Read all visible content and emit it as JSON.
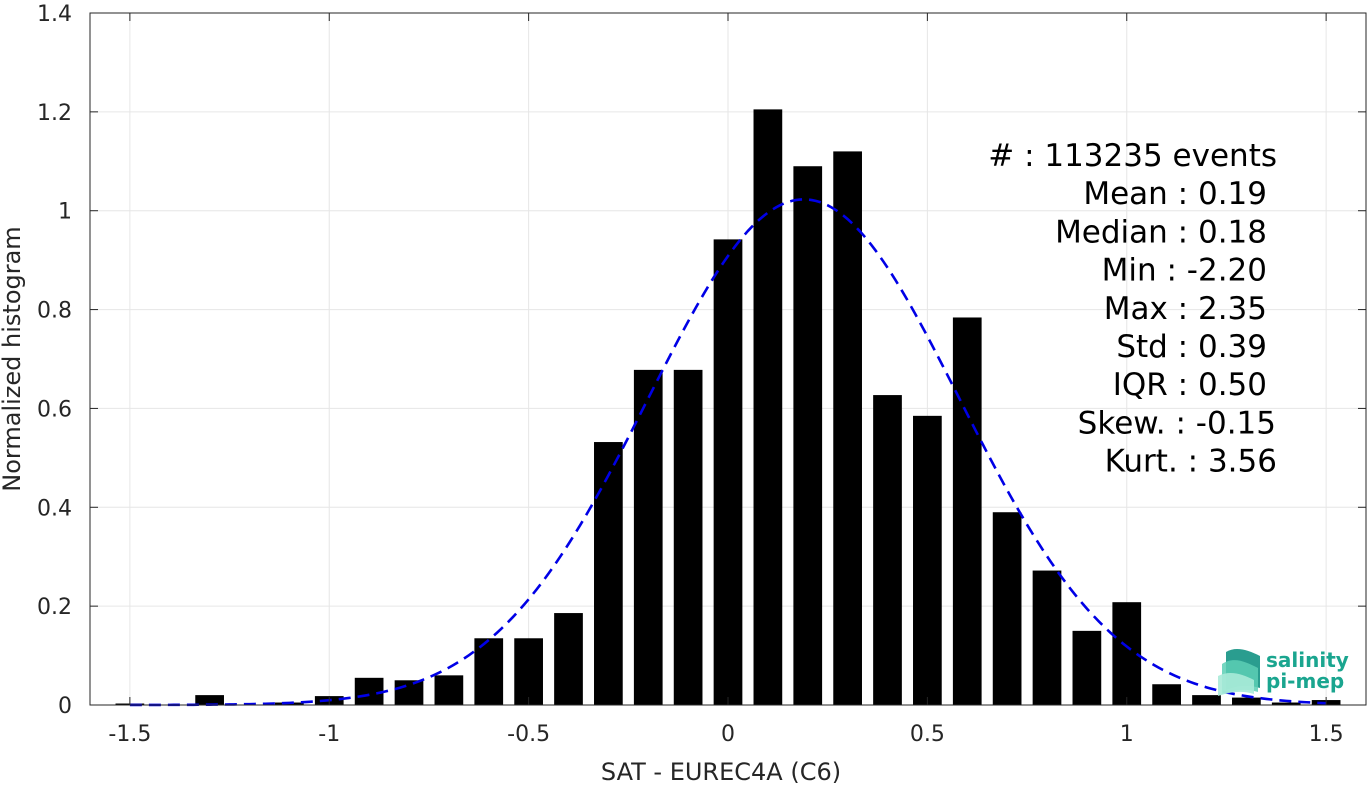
{
  "chart_data": {
    "type": "bar",
    "xlabel": "SAT - EUREC4A (C6)",
    "ylabel": "Normalized histogram",
    "xlim": [
      -1.6,
      1.6
    ],
    "ylim": [
      0,
      1.4
    ],
    "xticks": [
      -1.5,
      -1,
      -0.5,
      0,
      0.5,
      1,
      1.5
    ],
    "xtick_labels": [
      "-1.5",
      "-1",
      "-0.5",
      "0",
      "0.5",
      "1",
      "1.5"
    ],
    "yticks": [
      0,
      0.2,
      0.4,
      0.6,
      0.8,
      1,
      1.2,
      1.4
    ],
    "ytick_labels": [
      "0",
      "0.2",
      "0.4",
      "0.6",
      "0.8",
      "1",
      "1.2",
      "1.4"
    ],
    "grid": true,
    "bar_color": "#000000",
    "fit_color": "#0000e6",
    "bars": {
      "x": [
        -1.5,
        -1.4,
        -1.3,
        -1.2,
        -1.1,
        -1.0,
        -0.9,
        -0.8,
        -0.7,
        -0.6,
        -0.5,
        -0.4,
        -0.3,
        -0.2,
        -0.1,
        0.0,
        0.1,
        0.2,
        0.3,
        0.4,
        0.5,
        0.6,
        0.7,
        0.8,
        0.9,
        1.0,
        1.1,
        1.2,
        1.3,
        1.4,
        1.5
      ],
      "values": [
        0.003,
        0.0,
        0.02,
        0.0,
        0.005,
        0.018,
        0.055,
        0.05,
        0.06,
        0.135,
        0.135,
        0.186,
        0.532,
        0.678,
        0.678,
        0.942,
        1.205,
        1.09,
        1.12,
        0.627,
        0.585,
        0.784,
        0.39,
        0.272,
        0.15,
        0.208,
        0.042,
        0.02,
        0.015,
        0.005,
        0.01
      ]
    },
    "fit": {
      "type": "gaussian",
      "mean": 0.19,
      "std": 0.39,
      "style": "dashed"
    },
    "annotations": [
      "#  : 113235 events",
      "Mean : 0.19",
      "Median : 0.18",
      "Min : -2.20",
      "Max : 2.35",
      "Std : 0.39",
      "IQR : 0.50",
      "Skew. : -0.15",
      "Kurt. : 3.56"
    ]
  },
  "logo": {
    "line1": "salinity",
    "line2": "pi-mep",
    "color": "#1aa58f"
  }
}
